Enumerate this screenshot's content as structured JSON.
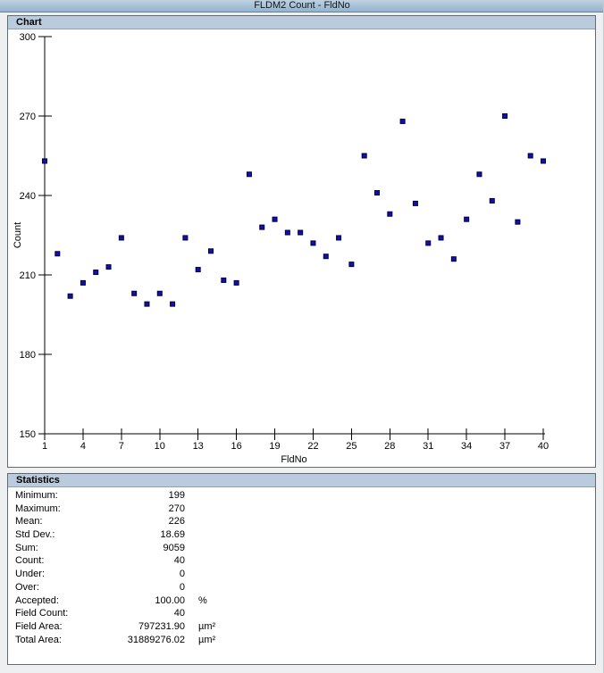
{
  "window": {
    "title": "FLDM2 Count - FldNo"
  },
  "colors": {
    "titlebar_top": "#bed1e2",
    "titlebar_bottom": "#93b3cd",
    "panel_header_bg": "#b9cbdc",
    "panel_border": "#5f6b75",
    "axis_color": "#000000",
    "point_fill": "#1010b0",
    "point_stroke": "#000038",
    "window_bg": "#edeff0"
  },
  "chart": {
    "header": "Chart"
  },
  "chart_data": {
    "type": "scatter",
    "title": "FLDM2 Count - FldNo",
    "xlabel": "FldNo",
    "ylabel": "Count",
    "marker": "square",
    "grid": false,
    "xlim": [
      1,
      40
    ],
    "ylim": [
      150,
      300
    ],
    "xticks": [
      1,
      4,
      7,
      10,
      13,
      16,
      19,
      22,
      25,
      28,
      31,
      34,
      37,
      40
    ],
    "yticks": [
      150,
      180,
      210,
      240,
      270,
      300
    ],
    "x": [
      1,
      2,
      3,
      4,
      5,
      6,
      7,
      8,
      9,
      10,
      11,
      12,
      13,
      14,
      15,
      16,
      17,
      18,
      19,
      20,
      21,
      22,
      23,
      24,
      25,
      26,
      27,
      28,
      29,
      30,
      31,
      32,
      33,
      34,
      35,
      36,
      37,
      38,
      39,
      40
    ],
    "values": [
      253,
      218,
      202,
      207,
      211,
      213,
      224,
      203,
      199,
      203,
      199,
      224,
      212,
      219,
      208,
      207,
      248,
      228,
      231,
      226,
      226,
      222,
      217,
      224,
      214,
      255,
      241,
      233,
      268,
      237,
      222,
      224,
      216,
      231,
      248,
      238,
      270,
      230,
      255,
      253
    ]
  },
  "statistics": {
    "header": "Statistics",
    "rows": [
      {
        "label": "Minimum:",
        "value": "199",
        "unit": ""
      },
      {
        "label": "Maximum:",
        "value": "270",
        "unit": ""
      },
      {
        "label": "Mean:",
        "value": "226",
        "unit": ""
      },
      {
        "label": "Std Dev.:",
        "value": "18.69",
        "unit": ""
      },
      {
        "label": "Sum:",
        "value": "9059",
        "unit": ""
      },
      {
        "label": "Count:",
        "value": "40",
        "unit": ""
      },
      {
        "label": "Under:",
        "value": "0",
        "unit": ""
      },
      {
        "label": "Over:",
        "value": "0",
        "unit": ""
      },
      {
        "label": "Accepted:",
        "value": "100.00",
        "unit": "%"
      },
      {
        "label": "Field Count:",
        "value": "40",
        "unit": ""
      },
      {
        "label": "Field Area:",
        "value": "797231.90",
        "unit": "µm²"
      },
      {
        "label": "Total Area:",
        "value": "31889276.02",
        "unit": "µm²"
      }
    ]
  }
}
